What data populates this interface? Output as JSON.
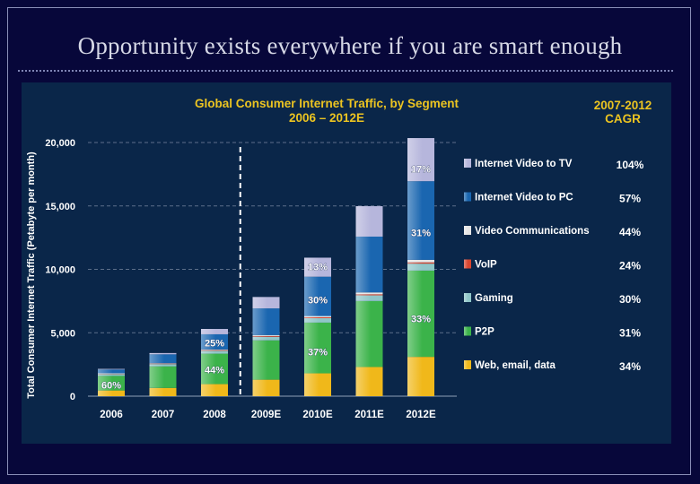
{
  "slide": {
    "title": "Opportunity exists everywhere if you are smart enough"
  },
  "chart_data": {
    "type": "bar",
    "stacked": true,
    "title": "Global Consumer Internet Traffic, by Segment",
    "subtitle": "2006 – 2012E",
    "xlabel": "",
    "ylabel": "Total Consumer Internet Traffic (Petabyte per month)",
    "ylim": [
      0,
      20000
    ],
    "yticks": [
      {
        "value": 0,
        "label": "0"
      },
      {
        "value": 5000,
        "label": "5,000"
      },
      {
        "value": 10000,
        "label": "10,000"
      },
      {
        "value": 15000,
        "label": "15,000"
      },
      {
        "value": 20000,
        "label": "20,000"
      }
    ],
    "categories": [
      "2006",
      "2007",
      "2008",
      "2009E",
      "2010E",
      "2011E",
      "2012E"
    ],
    "grid": true,
    "legend_position": "right",
    "cagr_header": [
      "2007-2012",
      "CAGR"
    ],
    "series": [
      {
        "name": "Web, email, data",
        "cagr": "34%",
        "color": "#f0b81a",
        "values": [
          450,
          650,
          950,
          1300,
          1800,
          2300,
          3100
        ]
      },
      {
        "name": "P2P",
        "cagr": "31%",
        "color": "#3bb34a",
        "values": [
          1150,
          1700,
          2400,
          3100,
          4000,
          5200,
          6800
        ]
      },
      {
        "name": "Gaming",
        "cagr": "30%",
        "color": "#8fc6c8",
        "values": [
          150,
          180,
          230,
          280,
          350,
          450,
          550
        ]
      },
      {
        "name": "VoIP",
        "cagr": "24%",
        "color": "#d9452f",
        "values": [
          30,
          40,
          50,
          60,
          70,
          80,
          100
        ]
      },
      {
        "name": "Video Communications",
        "cagr": "44%",
        "color": "#e6e6e6",
        "values": [
          20,
          30,
          50,
          80,
          100,
          150,
          200
        ]
      },
      {
        "name": "Internet Video to PC",
        "cagr": "57%",
        "color": "#1a66b0",
        "values": [
          300,
          700,
          1200,
          2100,
          3100,
          4400,
          6200
        ]
      },
      {
        "name": "Internet Video to TV",
        "cagr": "104%",
        "color": "#b6b6dc",
        "values": [
          50,
          100,
          420,
          900,
          1500,
          2400,
          3400
        ]
      }
    ],
    "divider_after_index": 2,
    "annotations": [
      {
        "label": "60%",
        "category_index": 0,
        "value": 900
      },
      {
        "label": "25%",
        "category_index": 2,
        "value": 4200
      },
      {
        "label": "44%",
        "category_index": 2,
        "value": 2100
      },
      {
        "label": "13%",
        "category_index": 4,
        "value": 10200
      },
      {
        "label": "30%",
        "category_index": 4,
        "value": 7600
      },
      {
        "label": "37%",
        "category_index": 4,
        "value": 3500
      },
      {
        "label": "17%",
        "category_index": 6,
        "value": 17900
      },
      {
        "label": "31%",
        "category_index": 6,
        "value": 12900
      },
      {
        "label": "33%",
        "category_index": 6,
        "value": 6100
      }
    ]
  }
}
